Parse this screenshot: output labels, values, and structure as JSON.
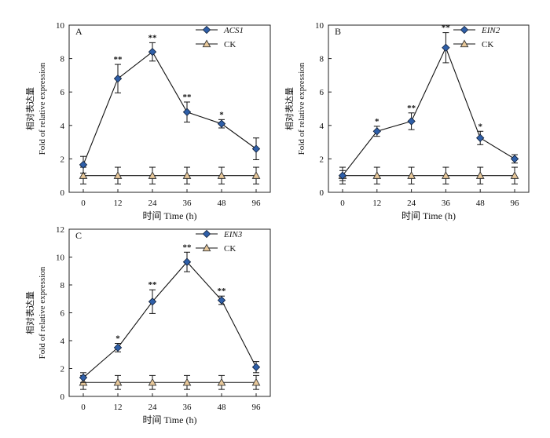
{
  "chart_data": [
    {
      "type": "line",
      "panel_label": "A",
      "categories": [
        "0",
        "12",
        "24",
        "36",
        "48",
        "96"
      ],
      "xlabel": "时间 Time (h)",
      "ylabel_cn": "相对表达量",
      "ylabel_en": "Fold of relative expression",
      "ylim": [
        0,
        10
      ],
      "yticks": [
        0,
        2,
        4,
        6,
        8,
        10
      ],
      "legend_position": "top-right",
      "series": [
        {
          "name": "ACS1",
          "italic": true,
          "marker": "diamond",
          "color": "#2f5fa8",
          "values": [
            1.65,
            6.8,
            8.4,
            4.8,
            4.1,
            2.6
          ],
          "errors": [
            0.5,
            0.85,
            0.55,
            0.6,
            0.25,
            0.65
          ],
          "significance": [
            "",
            "**",
            "**",
            "**",
            "*",
            ""
          ]
        },
        {
          "name": "CK",
          "italic": false,
          "marker": "triangle",
          "color": "#e8c89a",
          "values": [
            1,
            1,
            1,
            1,
            1,
            1
          ],
          "errors": [
            0.5,
            0.5,
            0.5,
            0.5,
            0.5,
            0.5
          ],
          "significance": [
            "",
            "",
            "",
            "",
            "",
            ""
          ]
        }
      ]
    },
    {
      "type": "line",
      "panel_label": "B",
      "categories": [
        "0",
        "12",
        "24",
        "36",
        "48",
        "96"
      ],
      "xlabel": "时间 Time (h)",
      "ylabel_cn": "相对表达量",
      "ylabel_en": "Fold of relative expression",
      "ylim": [
        0,
        10
      ],
      "yticks": [
        0,
        2,
        4,
        6,
        8,
        10
      ],
      "legend_position": "top-right",
      "series": [
        {
          "name": "EIN2",
          "italic": true,
          "marker": "diamond",
          "color": "#2f5fa8",
          "values": [
            1.0,
            3.65,
            4.25,
            8.65,
            3.25,
            2.0
          ],
          "errors": [
            0.3,
            0.3,
            0.5,
            0.9,
            0.4,
            0.25
          ],
          "significance": [
            "",
            "*",
            "**",
            "**",
            "*",
            ""
          ]
        },
        {
          "name": "CK",
          "italic": false,
          "marker": "triangle",
          "color": "#e8c89a",
          "values": [
            1,
            1,
            1,
            1,
            1,
            1
          ],
          "errors": [
            0.5,
            0.5,
            0.5,
            0.5,
            0.5,
            0.5
          ],
          "significance": [
            "",
            "",
            "",
            "",
            "",
            ""
          ]
        }
      ]
    },
    {
      "type": "line",
      "panel_label": "C",
      "categories": [
        "0",
        "12",
        "24",
        "36",
        "48",
        "96"
      ],
      "xlabel": "时间 Time (h)",
      "ylabel_cn": "相对表达量",
      "ylabel_en": "Fold of relative expression",
      "ylim": [
        0,
        12
      ],
      "yticks": [
        0,
        2,
        4,
        6,
        8,
        10,
        12
      ],
      "legend_position": "top-right",
      "series": [
        {
          "name": "EIN3",
          "italic": true,
          "marker": "diamond",
          "color": "#2f5fa8",
          "values": [
            1.35,
            3.5,
            6.8,
            9.65,
            6.9,
            2.1
          ],
          "errors": [
            0.35,
            0.3,
            0.85,
            0.7,
            0.3,
            0.4
          ],
          "significance": [
            "",
            "*",
            "**",
            "**",
            "**",
            ""
          ]
        },
        {
          "name": "CK",
          "italic": false,
          "marker": "triangle",
          "color": "#e8c89a",
          "values": [
            1,
            1,
            1,
            1,
            1,
            1
          ],
          "errors": [
            0.5,
            0.5,
            0.5,
            0.5,
            0.5,
            0.5
          ],
          "significance": [
            "",
            "",
            "",
            "",
            "",
            ""
          ]
        }
      ]
    }
  ]
}
